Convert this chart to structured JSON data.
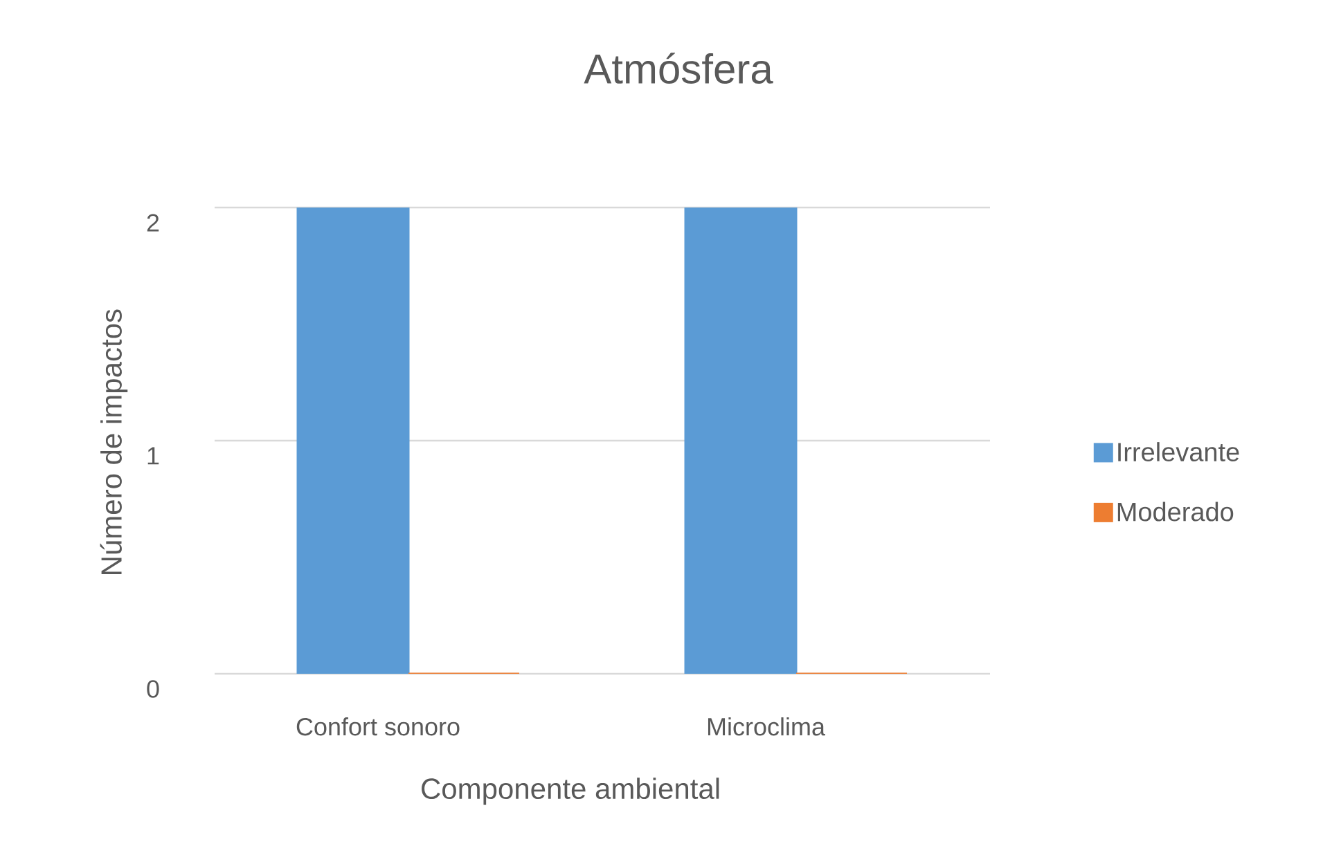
{
  "chart_data": {
    "type": "bar",
    "title": "Atmósfera",
    "xlabel": "Componente ambiental",
    "ylabel": "Número de impactos",
    "categories": [
      "Confort sonoro",
      "Microclima"
    ],
    "series": [
      {
        "name": "Irrelevante",
        "color": "#5b9bd5",
        "values": [
          2,
          2
        ]
      },
      {
        "name": "Moderado",
        "color": "#ed7d31",
        "values": [
          0,
          0
        ]
      }
    ],
    "ylim": [
      0,
      2
    ],
    "yticks": [
      0,
      1,
      2
    ],
    "grid": "y",
    "legend": "right"
  }
}
